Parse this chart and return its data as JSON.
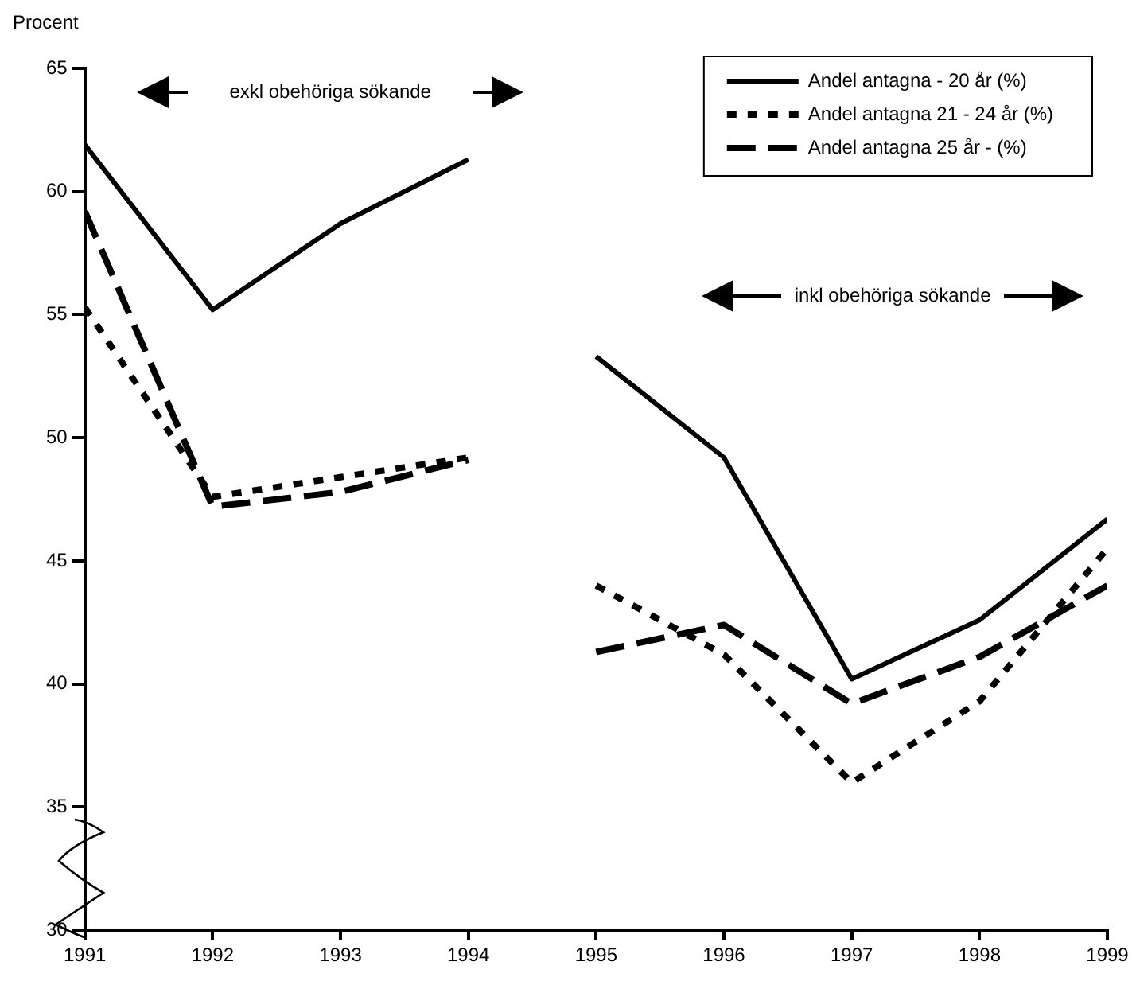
{
  "chart_data": {
    "type": "line",
    "ylabel": "Procent",
    "annotations": [
      "exkl obehöriga sökande",
      "inkl obehöriga sökande"
    ],
    "xlim": [
      1991,
      1999
    ],
    "xticks": [
      1991,
      1992,
      1993,
      1994,
      1995,
      1996,
      1997,
      1998,
      1999
    ],
    "ylim": [
      30,
      65
    ],
    "yticks": [
      30,
      35,
      40,
      45,
      50,
      55,
      60,
      65
    ],
    "grid": false,
    "legend": "top right",
    "marker": "none",
    "series": [
      {
        "name": "Andel antagna - 20 år (%)",
        "color": "#000000",
        "line_style": "solid",
        "x": [
          1991,
          1992,
          1993,
          1994
        ],
        "values": [
          61.9,
          55.2,
          58.7,
          61.3
        ]
      },
      {
        "name": "Andel antagna 21 - 24 år (%)",
        "color": "#000000",
        "line_style": "dotted",
        "x": [
          1991,
          1992,
          1993,
          1994
        ],
        "values": [
          55.3,
          47.6,
          48.4,
          49.2
        ]
      },
      {
        "name": "Andel antagna 25 år - (%)",
        "color": "#000000",
        "line_style": "dashed",
        "x": [
          1991,
          1992,
          1993,
          1994
        ],
        "values": [
          59.2,
          47.2,
          47.8,
          49.1
        ]
      },
      {
        "color": "#000000",
        "line_style": "solid",
        "x": [
          1995,
          1996,
          1997,
          1998,
          1999
        ],
        "values": [
          53.3,
          49.2,
          40.2,
          42.6,
          46.7
        ]
      },
      {
        "color": "#000000",
        "line_style": "dotted",
        "x": [
          1995,
          1996,
          1997,
          1998,
          1999
        ],
        "values": [
          44.0,
          41.2,
          36.0,
          39.3,
          45.5
        ]
      },
      {
        "color": "#000000",
        "line_style": "dashed",
        "x": [
          1995,
          1996,
          1997,
          1998,
          1999
        ],
        "values": [
          41.3,
          42.4,
          39.2,
          41.1,
          44.0
        ]
      }
    ]
  }
}
